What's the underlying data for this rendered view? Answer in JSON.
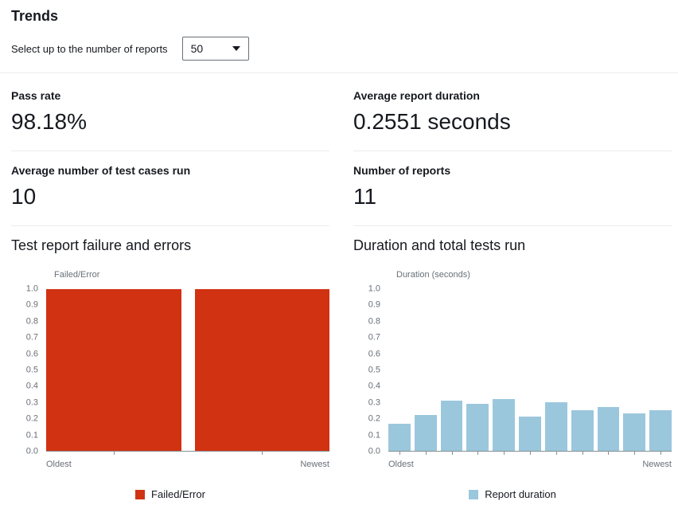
{
  "header": {
    "title": "Trends",
    "select_label": "Select up to the number of reports",
    "select_value": "50"
  },
  "metrics": [
    {
      "label": "Pass rate",
      "value": "98.18%"
    },
    {
      "label": "Average report duration",
      "value": "0.2551 seconds"
    },
    {
      "label": "Average number of test cases run",
      "value": "10"
    },
    {
      "label": "Number of reports",
      "value": "11"
    }
  ],
  "chart_data": [
    {
      "type": "bar",
      "title": "Test report failure and errors",
      "ylabel": "Failed/Error",
      "xlabel": "",
      "x_axis_labels": [
        "Oldest",
        "Newest"
      ],
      "ylim": [
        0,
        1.0
      ],
      "ytick_step": 0.1,
      "values": [
        1.0,
        1.0
      ],
      "bar_color": "#d13212",
      "grid": false,
      "legend_position": "bottom",
      "legend": [
        {
          "label": "Failed/Error",
          "color": "#d13212"
        }
      ]
    },
    {
      "type": "bar",
      "title": "Duration and total tests run",
      "ylabel": "Duration (seconds)",
      "xlabel": "",
      "x_axis_labels": [
        "Oldest",
        "Newest"
      ],
      "ylim": [
        0,
        1.0
      ],
      "ytick_step": 0.1,
      "values": [
        0.17,
        0.22,
        0.31,
        0.29,
        0.32,
        0.21,
        0.3,
        0.25,
        0.27,
        0.23,
        0.25
      ],
      "bar_color": "#9bc7dd",
      "grid": false,
      "legend_position": "bottom",
      "legend": [
        {
          "label": "Report duration",
          "color": "#9bc7dd"
        }
      ]
    }
  ]
}
